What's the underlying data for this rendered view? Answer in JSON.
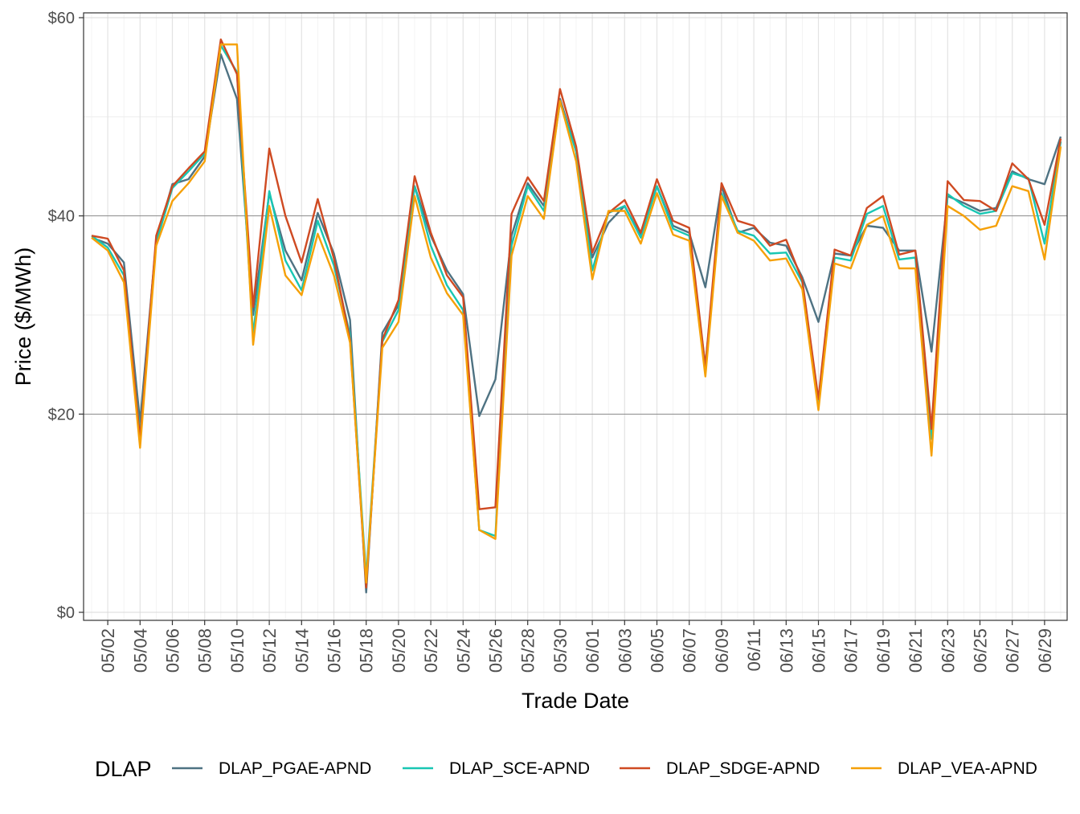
{
  "chart_data": {
    "type": "line",
    "title": "",
    "xlabel": "Trade Date",
    "ylabel": "Price ($/MWh)",
    "ylim": [
      0,
      60
    ],
    "y_ticks": [
      0,
      20,
      40,
      60
    ],
    "y_tick_labels": [
      "$0",
      "$20",
      "$40",
      "$60"
    ],
    "x_start": "05/01",
    "x_tick_labels": [
      "05/02",
      "05/04",
      "05/06",
      "05/08",
      "05/10",
      "05/12",
      "05/14",
      "05/16",
      "05/18",
      "05/20",
      "05/22",
      "05/24",
      "05/26",
      "05/28",
      "05/30",
      "06/01",
      "06/03",
      "06/05",
      "06/07",
      "06/09",
      "06/11",
      "06/13",
      "06/15",
      "06/17",
      "06/19",
      "06/21",
      "06/23",
      "06/25",
      "06/27",
      "06/29"
    ],
    "legend": {
      "title": "DLAP",
      "placement": "bottom"
    },
    "grid": true,
    "series": [
      {
        "name": "DLAP_PGAE-APND",
        "color": "#4e7282",
        "values": [
          37.8,
          37.2,
          35.3,
          19.2,
          37.5,
          43.2,
          43.7,
          46.0,
          56.3,
          51.8,
          30.0,
          42.3,
          36.5,
          33.5,
          40.3,
          36.2,
          29.5,
          2.0,
          28.2,
          31.0,
          43.0,
          38.0,
          34.5,
          32.1,
          19.8,
          23.5,
          38.0,
          43.3,
          41.0,
          51.8,
          46.5,
          35.8,
          39.3,
          41.0,
          38.0,
          43.0,
          39.0,
          38.3,
          32.8,
          43.0,
          38.3,
          38.8,
          37.3,
          37.0,
          33.8,
          29.3,
          36.2,
          36.0,
          39.0,
          38.8,
          36.5,
          36.5,
          26.3,
          42.0,
          41.3,
          40.5,
          40.8,
          44.5,
          43.7,
          43.2,
          48.0
        ]
      },
      {
        "name": "DLAP_SCE-APND",
        "color": "#18c6b3",
        "values": [
          38.0,
          36.8,
          34.0,
          18.0,
          37.3,
          42.8,
          44.5,
          46.3,
          57.2,
          54.5,
          28.0,
          42.5,
          35.5,
          32.5,
          39.5,
          35.0,
          28.0,
          3.5,
          27.3,
          30.5,
          43.0,
          37.0,
          33.0,
          30.5,
          8.3,
          7.7,
          37.0,
          43.0,
          40.5,
          51.5,
          46.5,
          34.5,
          40.3,
          41.0,
          37.8,
          43.0,
          38.7,
          38.0,
          24.8,
          42.3,
          38.5,
          38.0,
          36.2,
          36.3,
          33.3,
          21.2,
          35.8,
          35.5,
          40.2,
          41.0,
          35.6,
          35.8,
          17.5,
          42.2,
          41.0,
          40.2,
          40.5,
          44.3,
          43.8,
          37.2,
          47.5
        ]
      },
      {
        "name": "DLAP_SDGE-APND",
        "color": "#cf4a22",
        "values": [
          38.0,
          37.7,
          34.5,
          17.5,
          38.0,
          43.0,
          44.8,
          46.5,
          57.8,
          54.3,
          30.8,
          46.8,
          40.0,
          35.3,
          41.7,
          35.7,
          27.5,
          2.5,
          27.5,
          31.5,
          44.0,
          38.3,
          34.0,
          31.8,
          10.4,
          10.6,
          40.2,
          43.9,
          41.5,
          52.8,
          47.0,
          36.3,
          40.3,
          41.6,
          38.3,
          43.7,
          39.5,
          38.8,
          24.8,
          43.3,
          39.5,
          39.0,
          37.0,
          37.6,
          33.5,
          21.5,
          36.6,
          36.0,
          40.8,
          42.0,
          36.1,
          36.5,
          18.5,
          43.5,
          41.6,
          41.5,
          40.5,
          45.3,
          43.7,
          39.1,
          47.8
        ]
      },
      {
        "name": "DLAP_VEA-APND",
        "color": "#f5a008",
        "values": [
          37.8,
          36.5,
          33.3,
          16.6,
          37.0,
          41.5,
          43.3,
          45.5,
          57.3,
          57.3,
          27.0,
          41.0,
          34.0,
          32.0,
          38.2,
          34.0,
          27.2,
          3.0,
          26.7,
          29.3,
          42.0,
          35.8,
          32.2,
          30.0,
          8.3,
          7.4,
          36.0,
          42.0,
          39.7,
          51.6,
          45.5,
          33.6,
          40.5,
          40.5,
          37.2,
          42.3,
          38.1,
          37.5,
          23.8,
          42.0,
          38.3,
          37.5,
          35.5,
          35.7,
          32.6,
          20.4,
          35.2,
          34.7,
          39.1,
          40.0,
          34.7,
          34.7,
          15.8,
          41.0,
          40.0,
          38.6,
          39.0,
          43.0,
          42.5,
          35.6,
          47.0
        ]
      }
    ]
  }
}
